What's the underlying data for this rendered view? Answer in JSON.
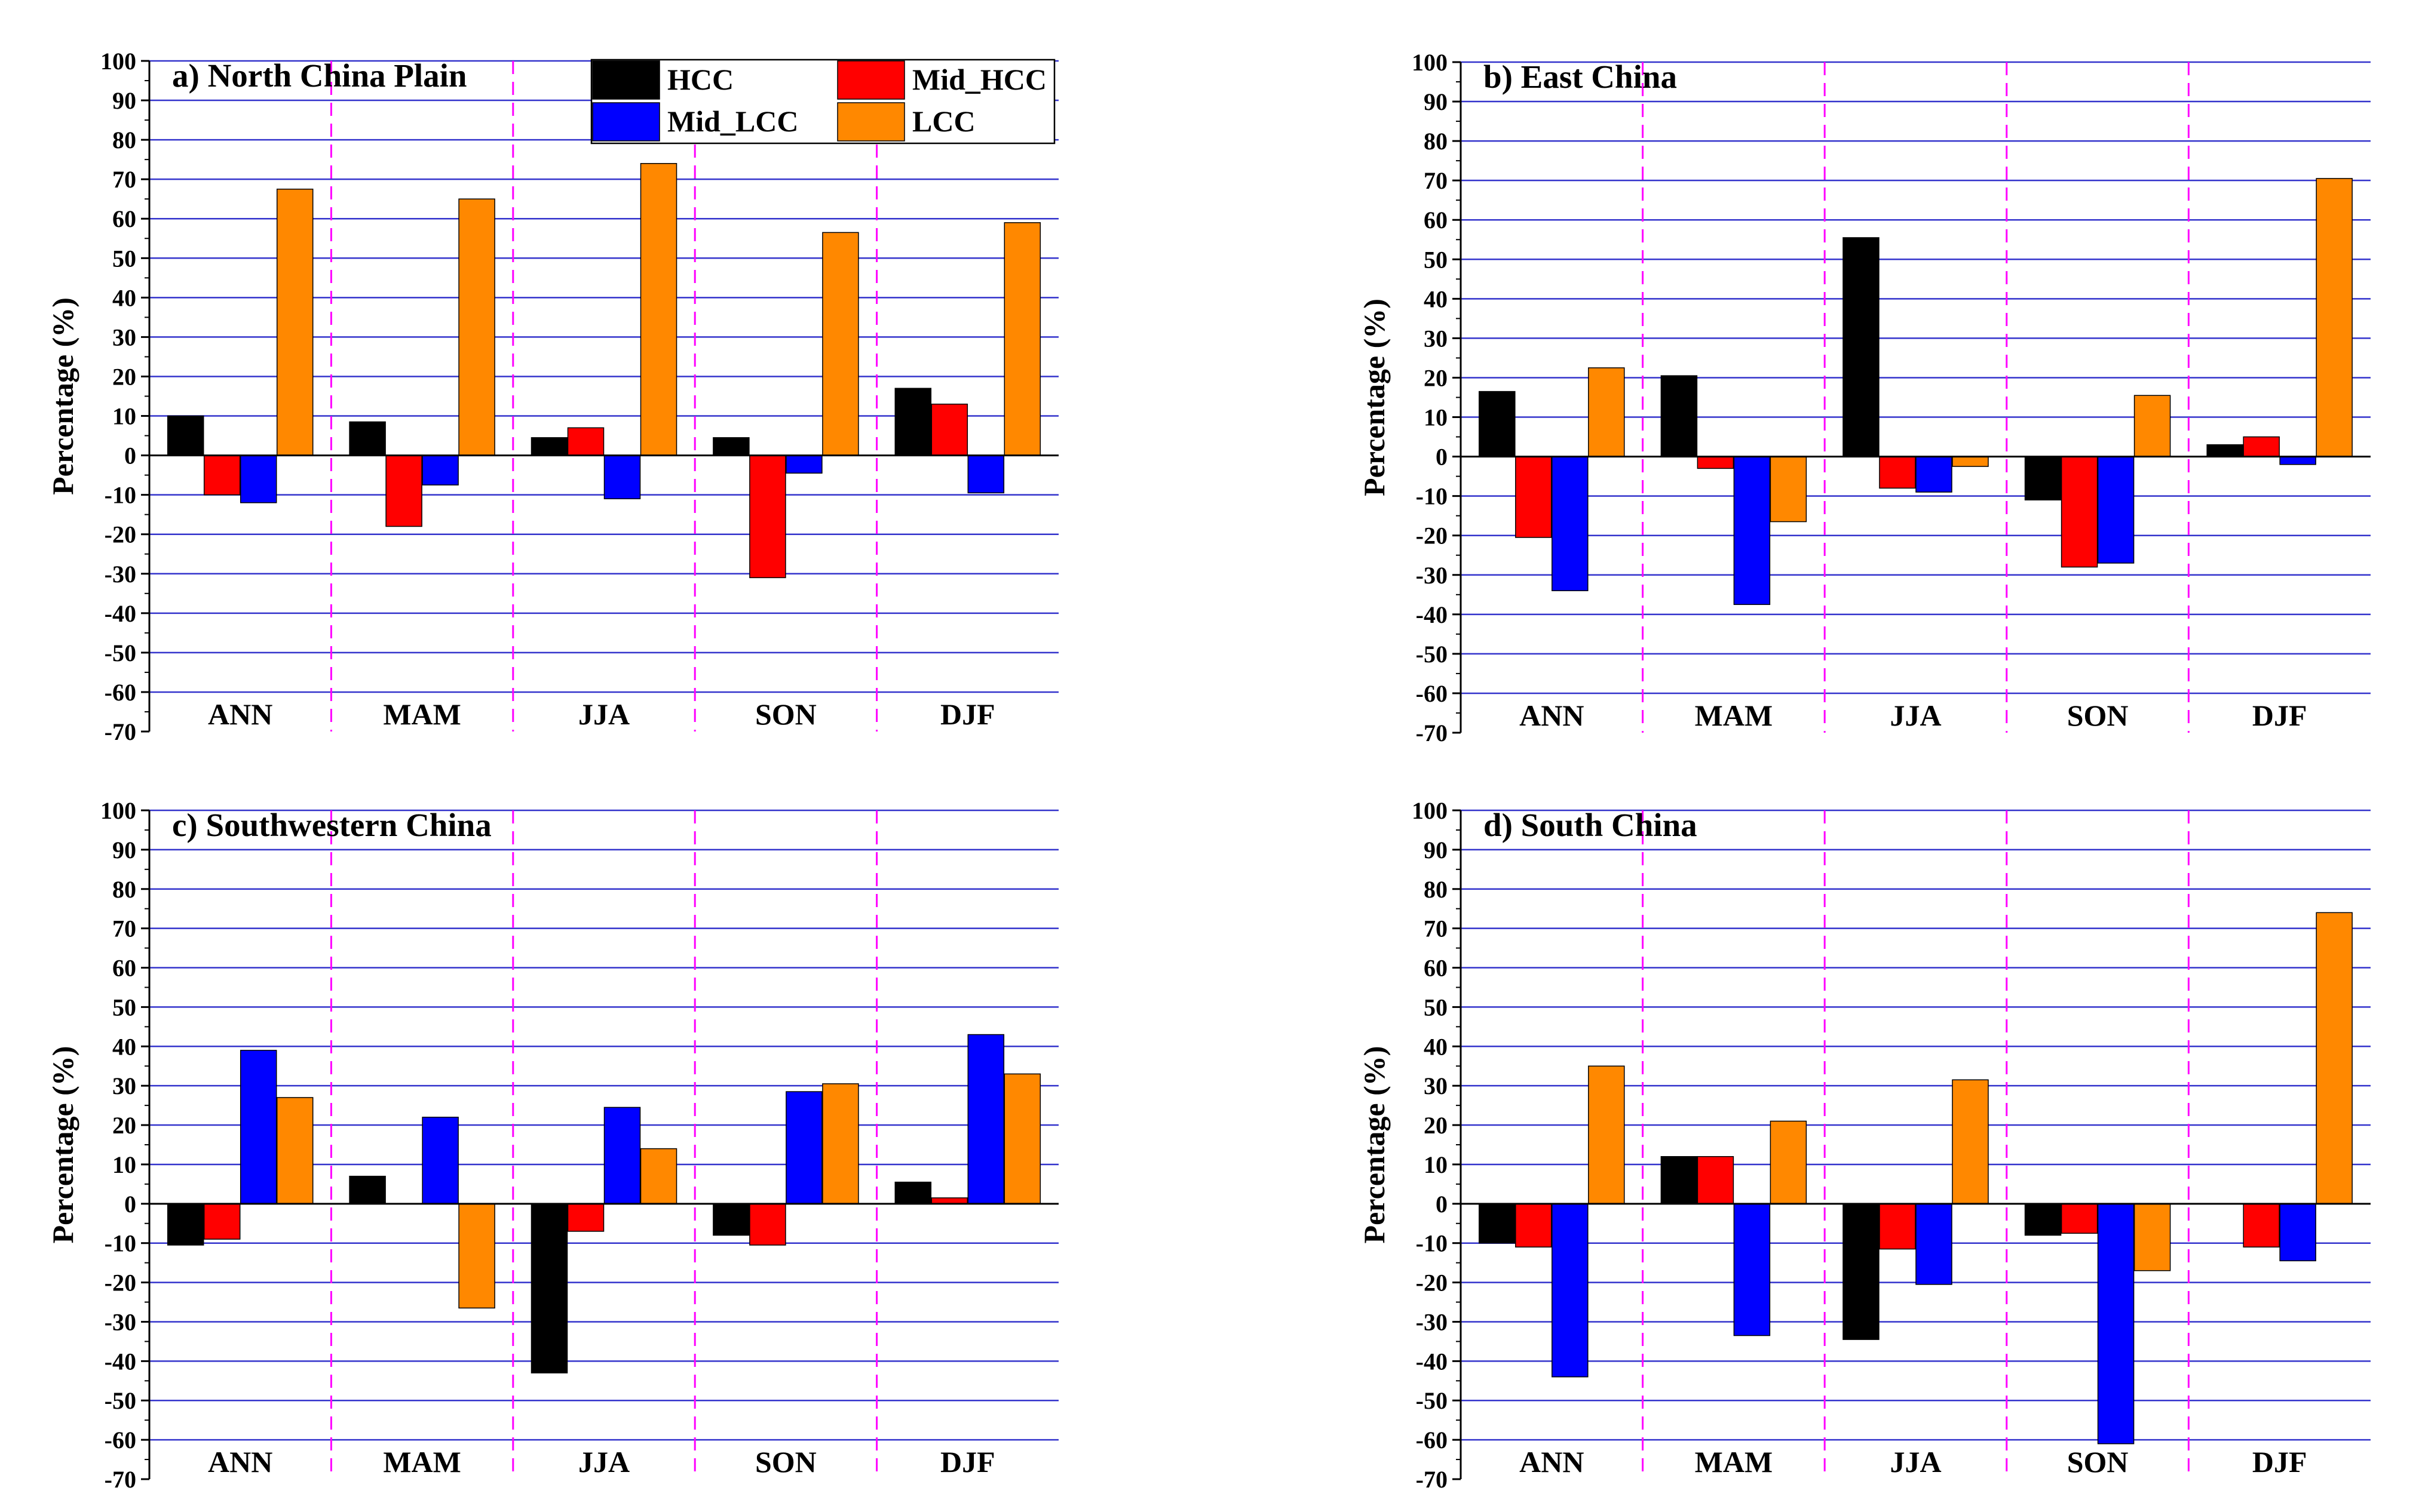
{
  "colors": {
    "HCC": "#000000",
    "Mid_HCC": "#ff0000",
    "Mid_LCC": "#0000ff",
    "LCC": "#ff8800",
    "gridline": "#3333cc",
    "divider": "#ff00ff",
    "axis": "#000000"
  },
  "legend": [
    "HCC",
    "Mid_HCC",
    "Mid_LCC",
    "LCC"
  ],
  "chart_data": [
    {
      "type": "bar",
      "title": "a) North China Plain",
      "ylabel": "Percentage (%)",
      "ylim": [
        -70,
        100
      ],
      "yticks": [
        "100",
        "90",
        "80",
        "70",
        "60",
        "50",
        "40",
        "30",
        "20",
        "10",
        "0",
        "-10",
        "-20",
        "-30",
        "-40",
        "-50",
        "-60",
        "-70"
      ],
      "categories": [
        "ANN",
        "MAM",
        "JJA",
        "SON",
        "DJF"
      ],
      "series": [
        {
          "name": "HCC",
          "values": [
            10,
            8.5,
            4.5,
            4.5,
            17
          ]
        },
        {
          "name": "Mid_HCC",
          "values": [
            -10,
            -18,
            7,
            -31,
            13
          ]
        },
        {
          "name": "Mid_LCC",
          "values": [
            -12,
            -7.5,
            -11,
            -4.5,
            -9.5
          ]
        },
        {
          "name": "LCC",
          "values": [
            67.5,
            65,
            74,
            56.5,
            59
          ]
        }
      ],
      "legend": "top-right"
    },
    {
      "type": "bar",
      "title": "b) East China",
      "ylabel": "Percentage (%)",
      "ylim": [
        -70,
        100
      ],
      "yticks": [
        "100",
        "90",
        "80",
        "70",
        "60",
        "50",
        "40",
        "30",
        "20",
        "10",
        "0",
        "-10",
        "-20",
        "-30",
        "-40",
        "-50",
        "-60",
        "-70"
      ],
      "categories": [
        "ANN",
        "MAM",
        "JJA",
        "SON",
        "DJF"
      ],
      "series": [
        {
          "name": "HCC",
          "values": [
            16.5,
            20.5,
            55.5,
            -11,
            3
          ]
        },
        {
          "name": "Mid_HCC",
          "values": [
            -20.5,
            -3,
            -8,
            -28,
            5
          ]
        },
        {
          "name": "Mid_LCC",
          "values": [
            -34,
            -37.5,
            -9,
            -27,
            -2
          ]
        },
        {
          "name": "LCC",
          "values": [
            22.5,
            -16.5,
            -2.5,
            15.5,
            70.5
          ]
        }
      ]
    },
    {
      "type": "bar",
      "title": "c) Southwestern China",
      "ylabel": "Percentage (%)",
      "ylim": [
        -70,
        100
      ],
      "yticks": [
        "100",
        "90",
        "80",
        "70",
        "60",
        "50",
        "40",
        "30",
        "20",
        "10",
        "0",
        "-10",
        "-20",
        "-30",
        "-40",
        "-50",
        "-60",
        "-70"
      ],
      "categories": [
        "ANN",
        "MAM",
        "JJA",
        "SON",
        "DJF"
      ],
      "series": [
        {
          "name": "HCC",
          "values": [
            -10.5,
            7,
            -43,
            -8,
            5.5
          ]
        },
        {
          "name": "Mid_HCC",
          "values": [
            -9,
            0,
            -7,
            -10.5,
            1.5
          ]
        },
        {
          "name": "Mid_LCC",
          "values": [
            39,
            22,
            24.5,
            28.5,
            43
          ]
        },
        {
          "name": "LCC",
          "values": [
            27,
            -26.5,
            14,
            30.5,
            33
          ]
        }
      ]
    },
    {
      "type": "bar",
      "title": "d) South China",
      "ylabel": "Percentage (%)",
      "ylim": [
        -70,
        100
      ],
      "yticks": [
        "100",
        "90",
        "80",
        "70",
        "60",
        "50",
        "40",
        "30",
        "20",
        "10",
        "0",
        "-10",
        "-20",
        "-30",
        "-40",
        "-50",
        "-60",
        "-70"
      ],
      "categories": [
        "ANN",
        "MAM",
        "JJA",
        "SON",
        "DJF"
      ],
      "series": [
        {
          "name": "HCC",
          "values": [
            -10,
            12,
            -34.5,
            -8,
            0
          ]
        },
        {
          "name": "Mid_HCC",
          "values": [
            -11,
            12,
            -11.5,
            -7.5,
            -11
          ]
        },
        {
          "name": "Mid_LCC",
          "values": [
            -44,
            -33.5,
            -20.5,
            -61,
            -14.5
          ]
        },
        {
          "name": "LCC",
          "values": [
            35,
            21,
            31.5,
            -17,
            74
          ]
        }
      ]
    }
  ]
}
